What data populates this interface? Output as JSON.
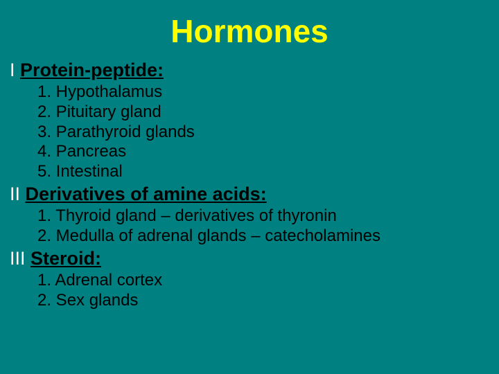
{
  "colors": {
    "background": "#008080",
    "title": "#ffff00",
    "roman": "#ffffff",
    "body_text": "#000000"
  },
  "typography": {
    "title_fontsize": 46,
    "section_fontsize": 27,
    "list_fontsize": 24,
    "font_family": "Arial"
  },
  "title": "Hormones",
  "sections": [
    {
      "roman": "I",
      "heading": "Protein-peptide:",
      "items": [
        "1. Hypothalamus",
        "2. Pituitary gland",
        "3. Parathyroid glands",
        "4. Pancreas",
        "5. Intestinal"
      ]
    },
    {
      "roman": "II",
      "heading": "Derivatives of amine acids:",
      "items": [
        "1. Thyroid gland – derivatives of thyronin",
        "2. Medulla of adrenal glands – catecholamines"
      ]
    },
    {
      "roman": "III",
      "heading": "Steroid:",
      "items": [
        "1. Adrenal cortex",
        "2. Sex glands"
      ]
    }
  ]
}
